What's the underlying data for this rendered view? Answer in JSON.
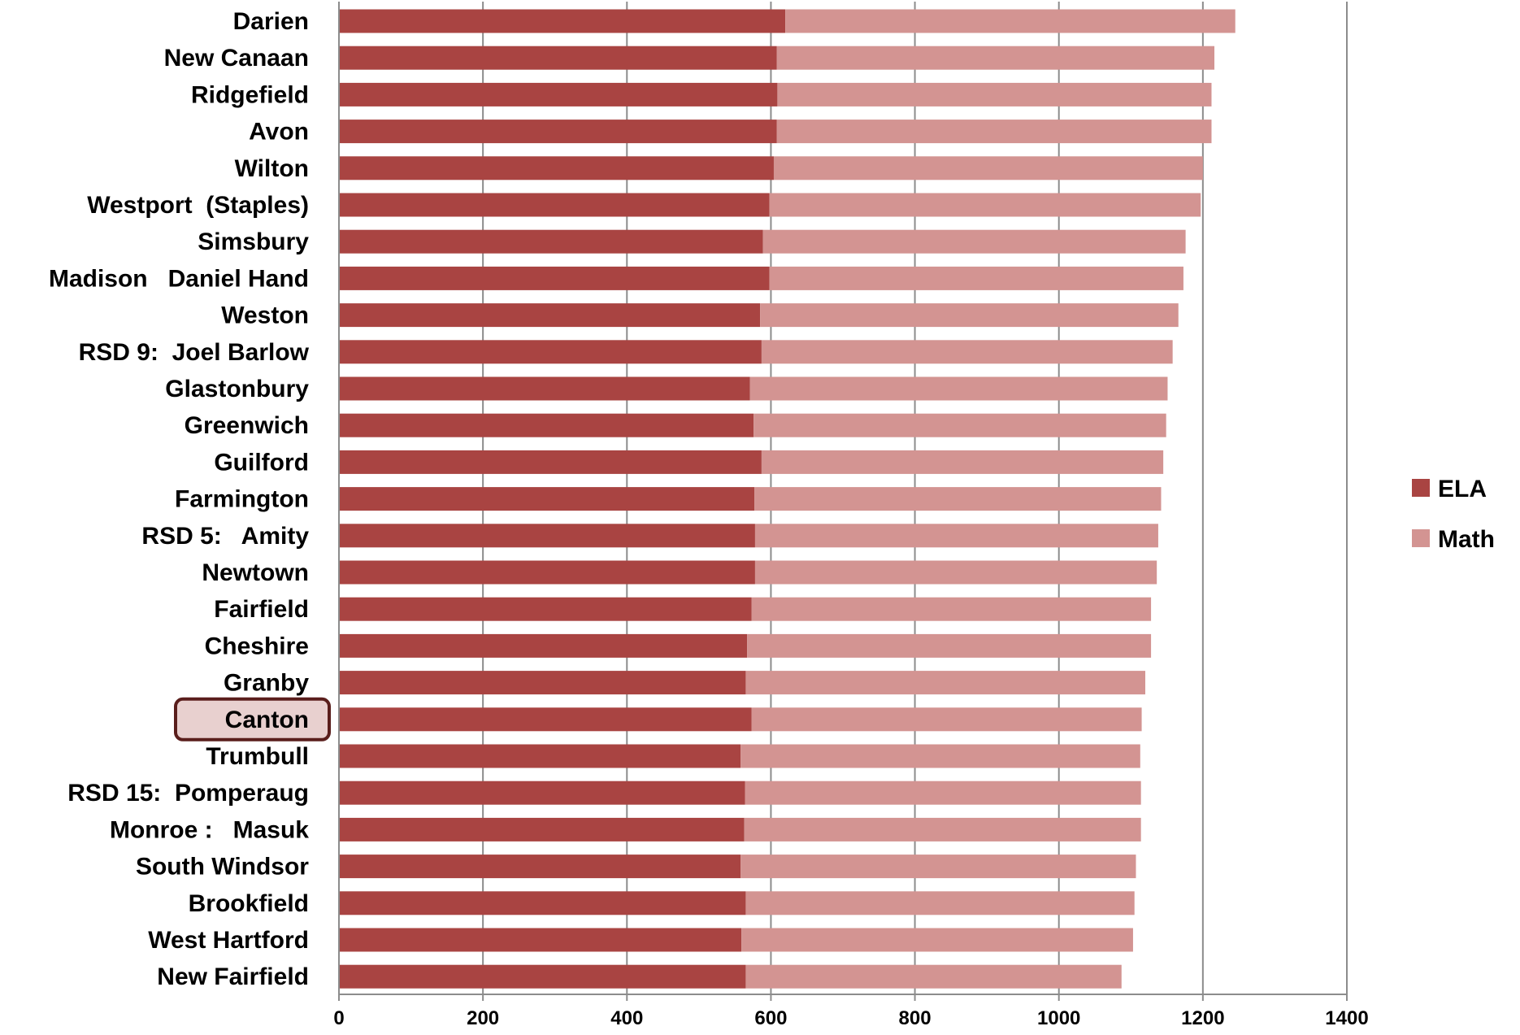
{
  "chart_data": {
    "type": "bar",
    "orientation": "horizontal",
    "stacked": true,
    "categories": [
      "Darien",
      "New Canaan",
      "Ridgefield",
      "Avon",
      "Wilton",
      "Westport  (Staples)",
      "Simsbury",
      "Madison   Daniel Hand",
      "Weston",
      "RSD 9:  Joel Barlow",
      "Glastonbury",
      "Greenwich",
      "Guilford",
      "Farmington",
      "RSD 5:   Amity",
      "Newtown",
      "Fairfield",
      "Cheshire",
      "Granby",
      "Canton",
      "Trumbull",
      "RSD 15:  Pomperaug",
      "Monroe :   Masuk",
      "South Windsor",
      "Brookfield",
      "West Hartford",
      "New Fairfield"
    ],
    "highlighted_category": "Canton",
    "series": [
      {
        "name": "ELA",
        "color": "#A94442",
        "values": [
          620,
          608,
          609,
          608,
          604,
          598,
          589,
          598,
          585,
          587,
          571,
          576,
          587,
          577,
          578,
          578,
          573,
          567,
          565,
          573,
          558,
          564,
          563,
          558,
          565,
          559,
          565
        ]
      },
      {
        "name": "Math",
        "color": "#D39492",
        "values": [
          625,
          608,
          603,
          604,
          596,
          599,
          587,
          575,
          581,
          571,
          580,
          573,
          558,
          565,
          560,
          558,
          555,
          561,
          555,
          542,
          555,
          550,
          551,
          549,
          540,
          544,
          522
        ]
      }
    ],
    "xlim": [
      0,
      1400
    ],
    "xticks": [
      "0",
      "200",
      "400",
      "600",
      "800",
      "1000",
      "1200",
      "1400"
    ],
    "grid": true,
    "legend_position": "right",
    "title": "",
    "xlabel": "",
    "ylabel": ""
  }
}
